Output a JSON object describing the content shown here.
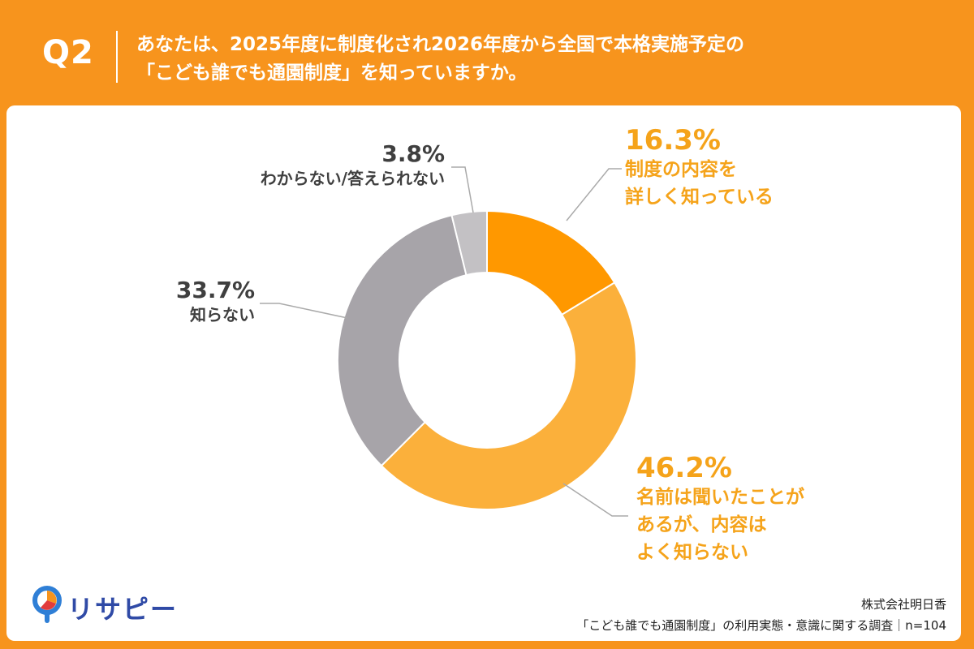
{
  "header": {
    "q_label": "Q2",
    "question_line1": "あなたは、2025年度に制度化され2026年度から全国で本格実施予定の",
    "question_line2": "「こども誰でも通園制度」を知っていますか。"
  },
  "chart_data": {
    "type": "pie",
    "donut": true,
    "slices": [
      {
        "percent_label": "16.3%",
        "value": 16.3,
        "label_lines": [
          "制度の内容を",
          "詳しく知っている"
        ],
        "color": "#ff9800"
      },
      {
        "percent_label": "46.2%",
        "value": 46.2,
        "label_lines": [
          "名前は聞いたことが",
          "あるが、内容は",
          "よく知らない"
        ],
        "color": "#fbb03b"
      },
      {
        "percent_label": "33.7%",
        "value": 33.7,
        "label_lines": [
          "知らない"
        ],
        "color": "#a7a4a9"
      },
      {
        "percent_label": "3.8%",
        "value": 3.8,
        "label_lines": [
          "わからない/答えられない"
        ],
        "color": "#c3c1c4"
      }
    ]
  },
  "branding": {
    "logo_text": "リサピー"
  },
  "footer": {
    "company": "株式会社明日香",
    "survey": "「こども誰でも通園制度」の利用実態・意識に関する調査｜n=104"
  },
  "colors": {
    "header_bg": "#f7941d",
    "accent_text": "#f5a31a",
    "dark_text": "#3f3f3f",
    "leader_line": "#aaaaaa"
  }
}
